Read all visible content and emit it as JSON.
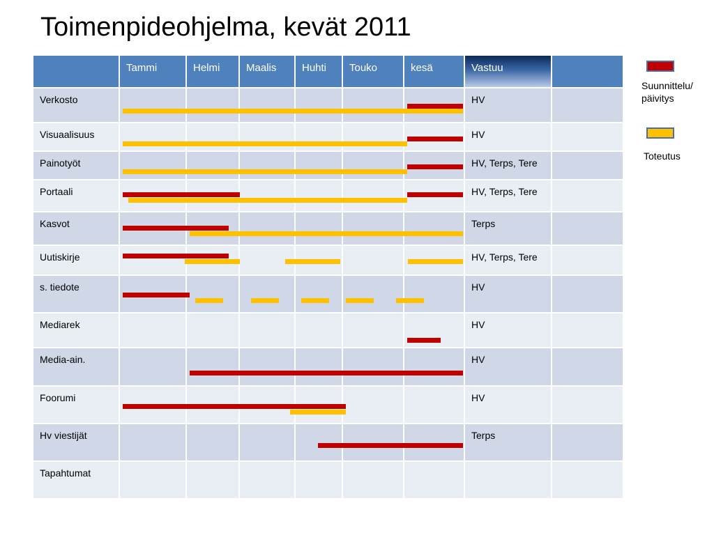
{
  "title": "Toimenpideohjelma, kevät 2011",
  "table": {
    "headers": [
      "",
      "Tammi",
      "Helmi",
      "Maalis",
      "Huhti",
      "Touko",
      "kesä",
      "Vastuu",
      ""
    ],
    "rows": [
      {
        "label": "Verkosto",
        "vastuu": "HV"
      },
      {
        "label": "Visuaalisuus",
        "vastuu": "HV"
      },
      {
        "label": "Painotyöt",
        "vastuu": "HV, Terps, Tere"
      },
      {
        "label": "Portaali",
        "vastuu": "HV, Terps, Tere"
      },
      {
        "label": "Kasvot",
        "vastuu": "Terps"
      },
      {
        "label": "Uutiskirje",
        "vastuu": "HV, Terps, Tere"
      },
      {
        "label": "s. tiedote",
        "vastuu": "HV"
      },
      {
        "label": "Mediarek",
        "vastuu": "HV"
      },
      {
        "label": "Media-ain.",
        "vastuu": "HV"
      },
      {
        "label": "Foorumi",
        "vastuu": "HV"
      },
      {
        "label": "Hv viestijät",
        "vastuu": "Terps"
      },
      {
        "label": "Tapahtumat",
        "vastuu": ""
      }
    ]
  },
  "legend": {
    "plan_line1": "Suunnittelu/",
    "plan_line2": "päivitys",
    "impl": "Toteutus"
  },
  "colors": {
    "plan": "#c00000",
    "implementation": "#ffc000",
    "header": "#4f81bd",
    "row_odd": "#d0d8e8",
    "row_even": "#e9edf4"
  }
}
